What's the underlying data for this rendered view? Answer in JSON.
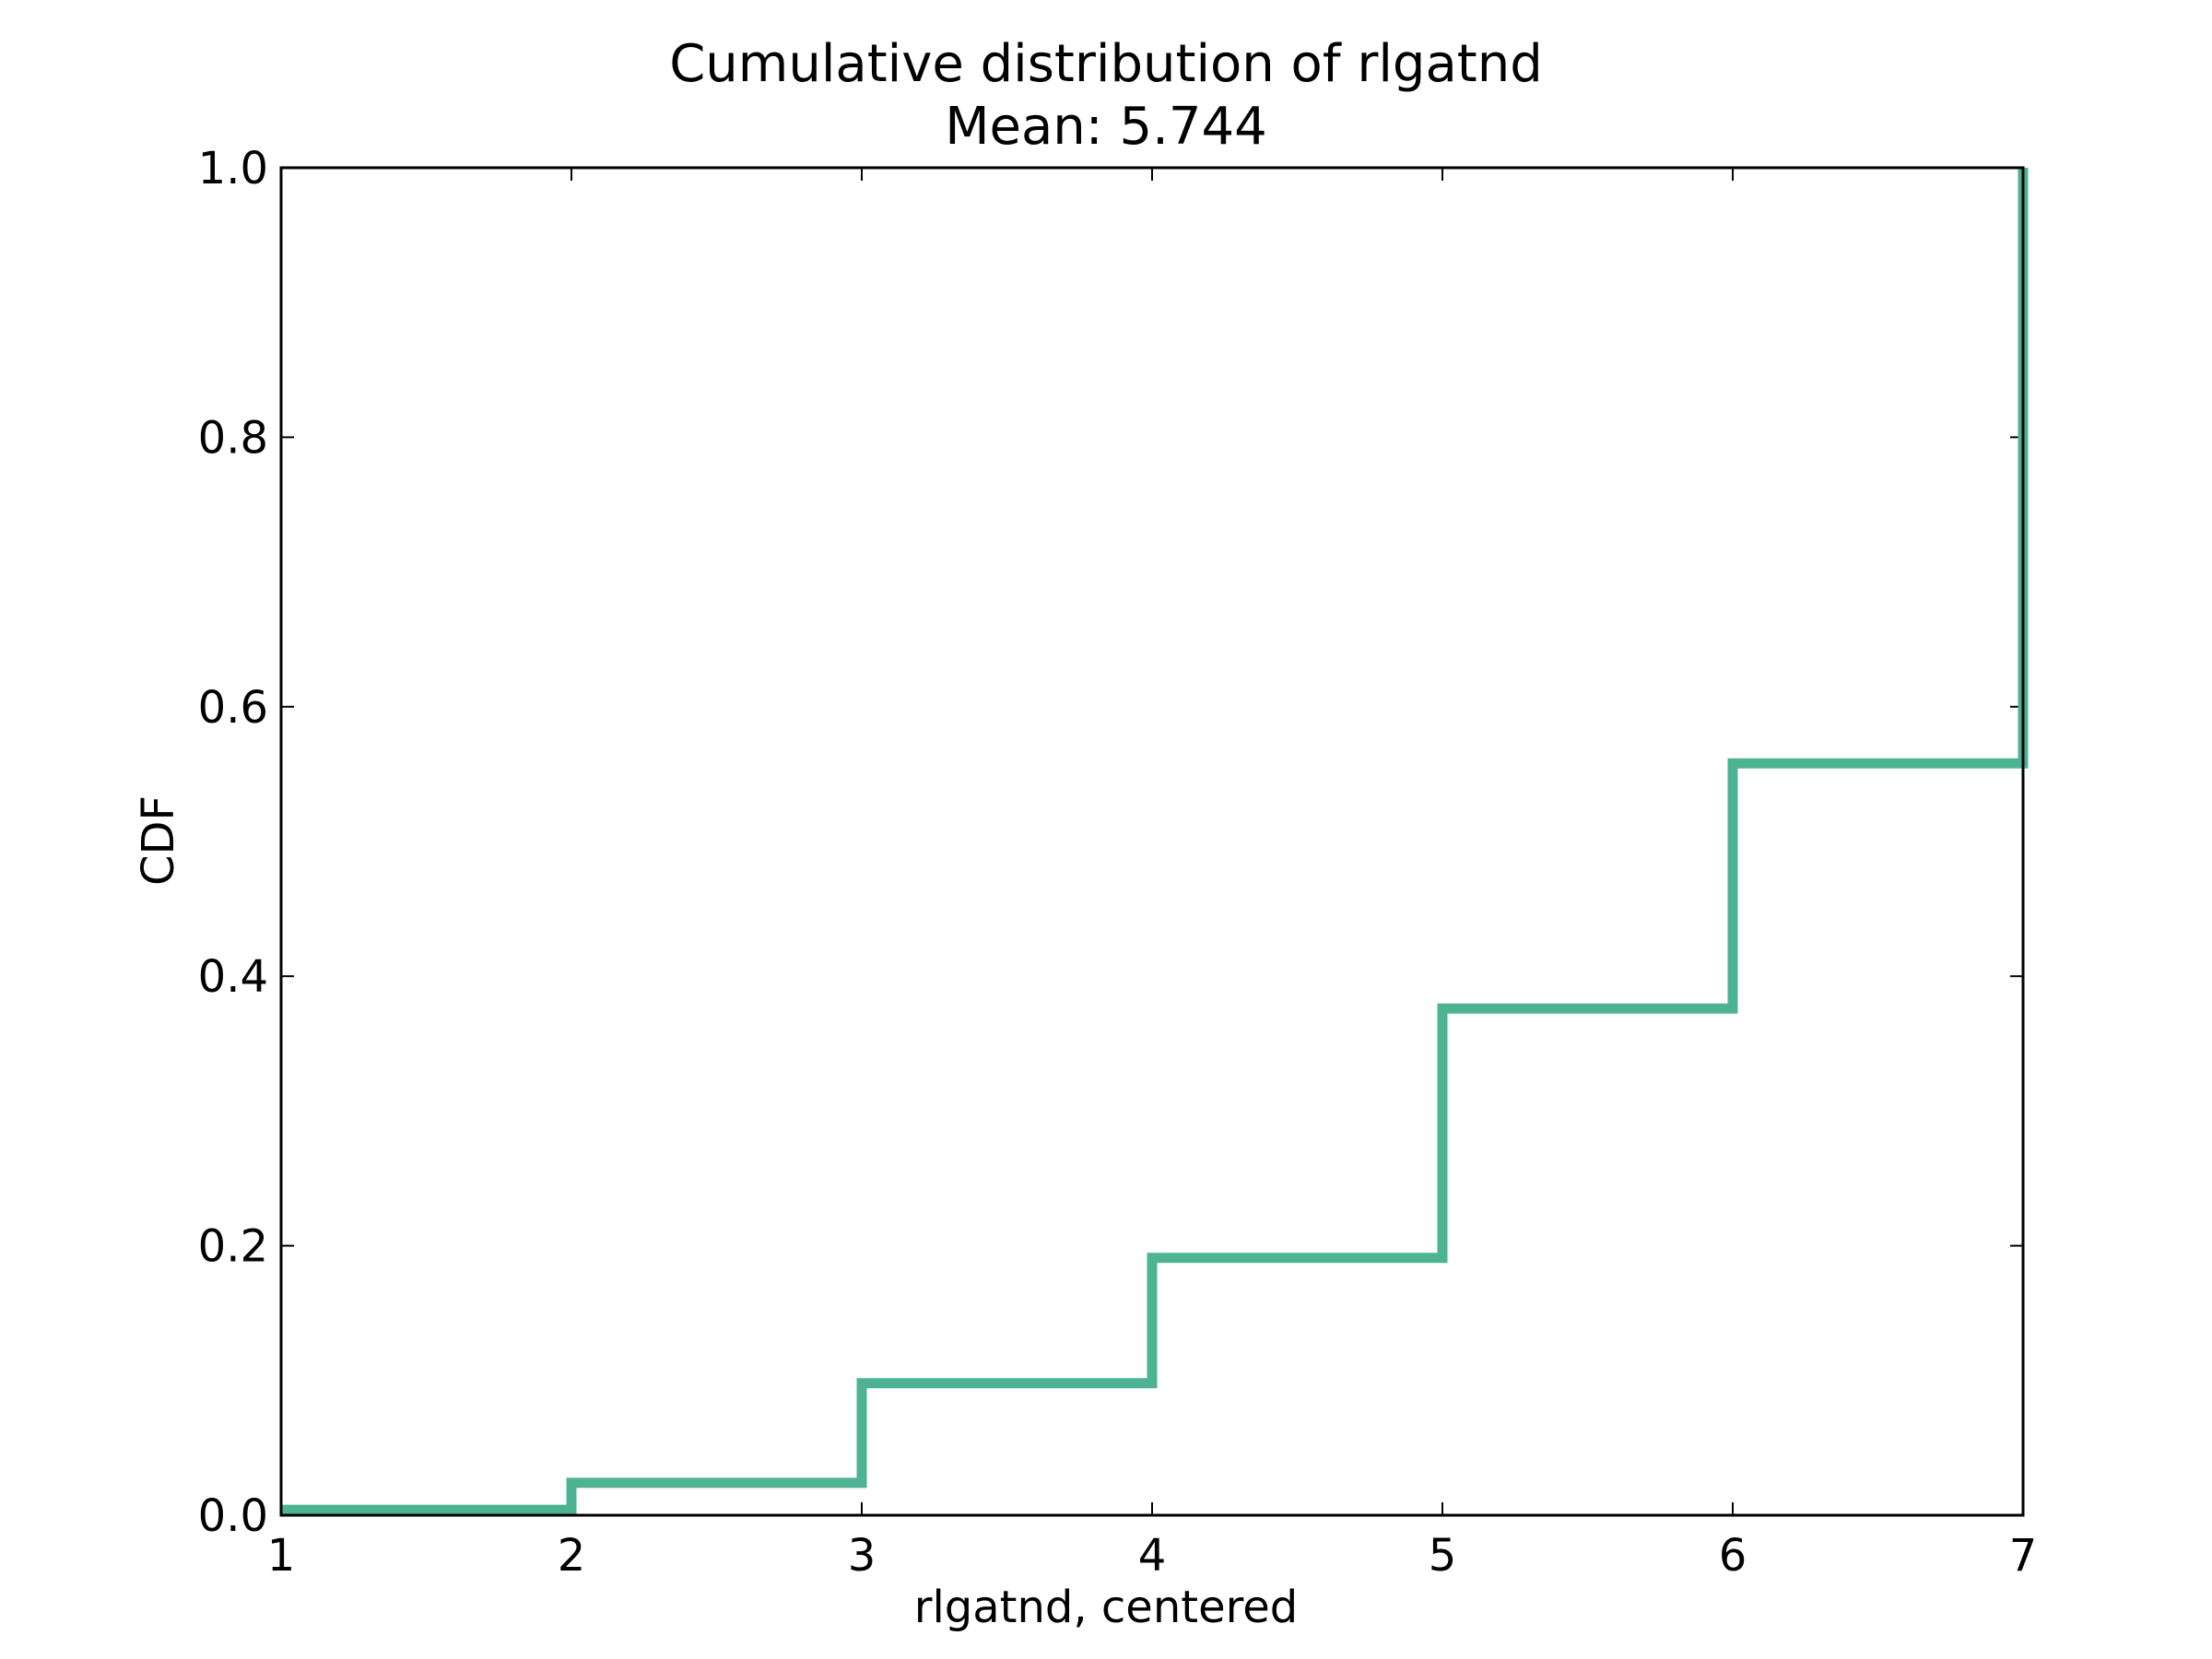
{
  "chart_data": {
    "type": "line",
    "step": true,
    "title": "Cumulative distribution of rlgatnd",
    "subtitle": "Mean: 5.744",
    "xlabel": "rlgatnd, centered",
    "ylabel": "CDF",
    "xlim": [
      1,
      7
    ],
    "ylim": [
      0.0,
      1.0
    ],
    "xticks": [
      "1",
      "2",
      "3",
      "4",
      "5",
      "6",
      "7"
    ],
    "yticks": [
      "0.0",
      "0.2",
      "0.4",
      "0.6",
      "0.8",
      "1.0"
    ],
    "grid": false,
    "series": [
      {
        "color": "#4db393",
        "x": [
          1,
          2,
          3,
          4,
          5,
          6,
          7
        ],
        "y": [
          0.004,
          0.024,
          0.098,
          0.191,
          0.376,
          0.558,
          1.0
        ]
      }
    ]
  }
}
